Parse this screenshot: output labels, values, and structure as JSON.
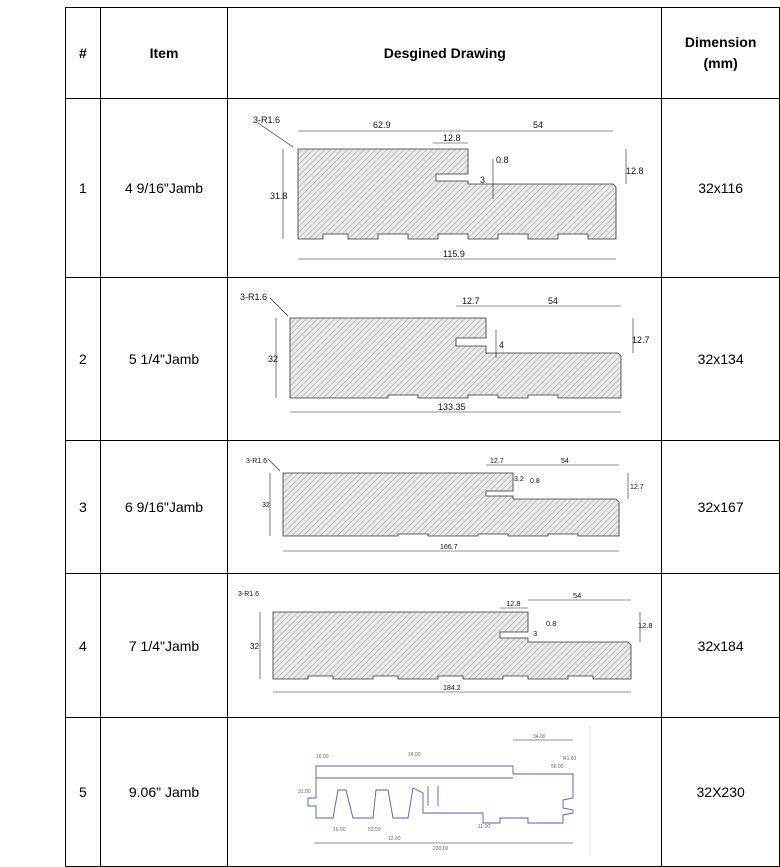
{
  "header": {
    "num": "#",
    "item": "Item",
    "drawing": "Desgined Drawing",
    "dimension": "Dimension (mm)"
  },
  "rows": [
    {
      "num": "1",
      "item": "4 9/16\"Jamb",
      "dimension": "32x116",
      "labels": {
        "radius": "3-R1.6",
        "top": "62.9",
        "notch": "12.8",
        "right": "54",
        "depth": "0.8",
        "groove": "3",
        "side": "12.8",
        "height": "31.8",
        "width": "115.9"
      }
    },
    {
      "num": "2",
      "item": "5 1/4\"Jamb",
      "dimension": "32x134",
      "labels": {
        "radius": "3-R1.6",
        "notch": "12.7",
        "right": "54",
        "groove": "4",
        "side": "12.7",
        "height": "32",
        "width": "133.35"
      }
    },
    {
      "num": "3",
      "item": "6 9/16\"Jamb",
      "dimension": "32x167",
      "labels": {
        "radius": "3-R1.6",
        "notch": "12.7",
        "right": "54",
        "groove": "3.2",
        "depth": "0.8",
        "side": "12.7",
        "height": "32",
        "width": "166.7"
      }
    },
    {
      "num": "4",
      "item": "7 1/4\"Jamb",
      "dimension": "32x184",
      "labels": {
        "radius": "3-R1.6",
        "notch": "12.8",
        "right": "54",
        "depth": "0.8",
        "groove": "3",
        "side": "12.8",
        "height": "32",
        "width": "184.2"
      }
    },
    {
      "num": "5",
      "item": "9.06\" Jamb",
      "dimension": "32X230",
      "labels": {
        "a": "16.00",
        "b": "14.00",
        "c": "34.00",
        "d": "56.00",
        "e": "53.50",
        "f": "12.00",
        "g": "11.00",
        "h": "16.00",
        "i": "230.00",
        "j": "31.80",
        "k": "R1.60"
      }
    }
  ]
}
